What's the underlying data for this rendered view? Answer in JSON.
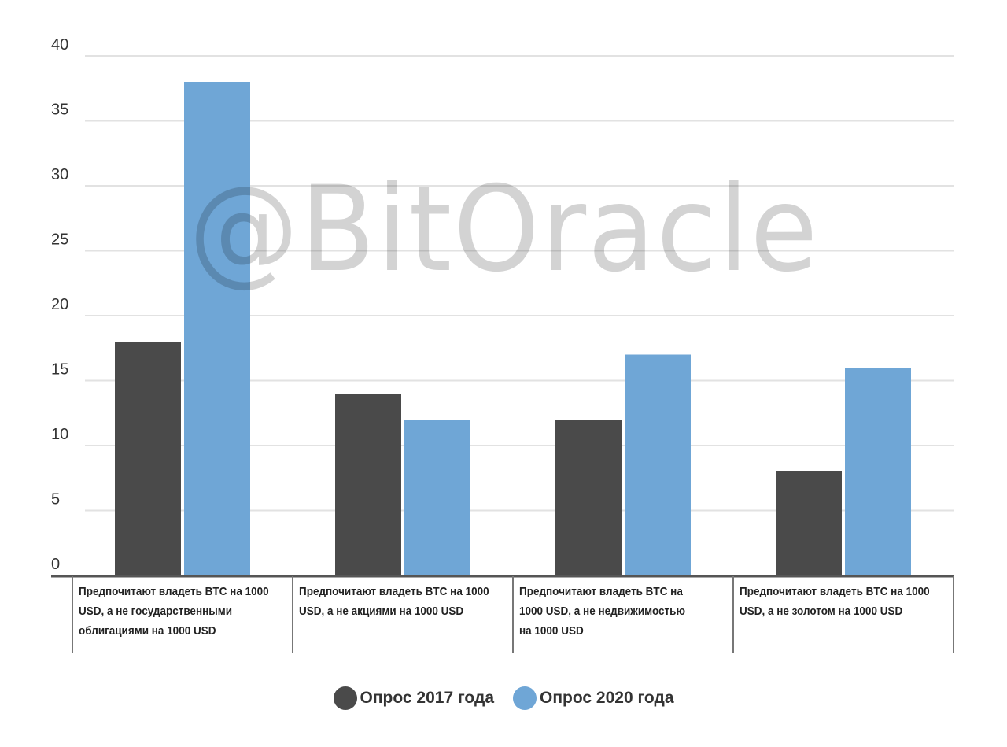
{
  "chart_data": {
    "type": "bar",
    "categories": [
      "Предпочитают владеть BTC на 1000 USD, а не государственными облигациями на 1000 USD",
      "Предпочитают владеть BTC на 1000 USD, а не акциями на 1000 USD",
      "Предпочитают владеть BTC на 1000 USD, а не недвижимостью на 1000 USD",
      "Предпочитают владеть BTC на 1000 USD, а не золотом на 1000 USD"
    ],
    "category_lines": [
      [
        "Предпочитают владеть BTC на 1000",
        "USD, а не государственными",
        "облигациями на 1000 USD"
      ],
      [
        "Предпочитают владеть BTC на 1000",
        "USD, а не акциями на 1000 USD"
      ],
      [
        "Предпочитают владеть BTC на",
        "1000 USD, а не недвижимостью",
        "на 1000 USD"
      ],
      [
        "Предпочитают владеть BTC на 1000",
        "USD, а не золотом на 1000 USD"
      ]
    ],
    "series": [
      {
        "name": "Опрос 2017 года",
        "values": [
          18,
          14,
          12,
          8
        ],
        "color": "#4a4a4a"
      },
      {
        "name": "Опрос 2020 года",
        "values": [
          38,
          12,
          17,
          16
        ],
        "color": "#6fa6d6"
      }
    ],
    "ylim": [
      0,
      40
    ],
    "yticks": [
      "0",
      "5",
      "10",
      "15",
      "20",
      "25",
      "30",
      "35",
      "40"
    ],
    "grid": true,
    "legend_position": "bottom",
    "xlabel": "",
    "ylabel": "",
    "title": ""
  },
  "watermark": "@BitOracle",
  "colors": {
    "grid": "#e2e2e2",
    "axis": "#555555",
    "tick_text": "#333333"
  }
}
